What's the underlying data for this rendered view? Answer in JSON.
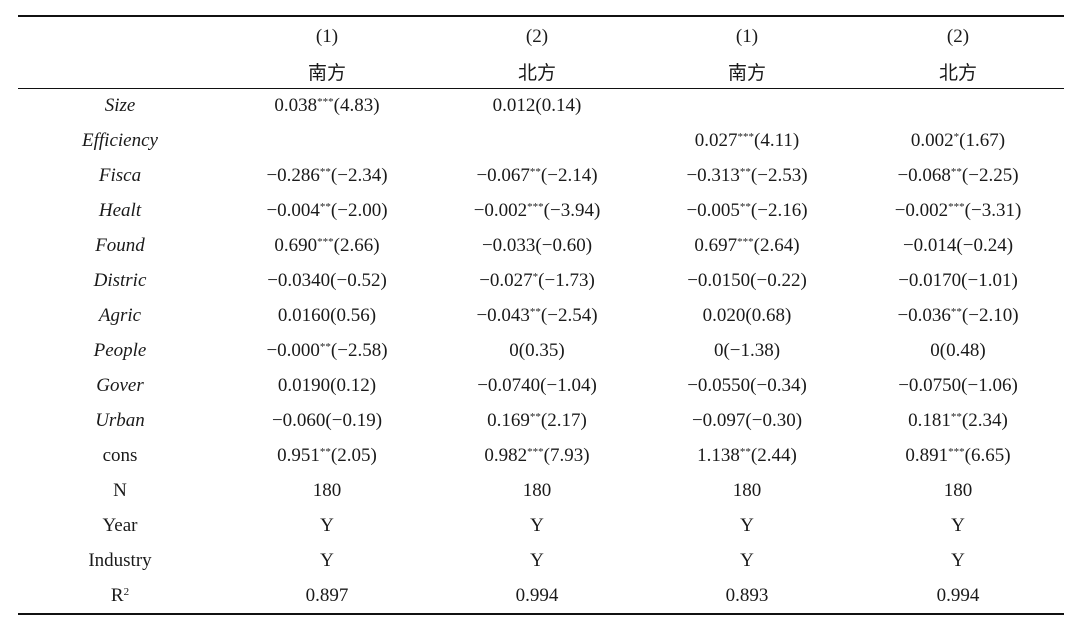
{
  "table": {
    "header_numbers": [
      "(1)",
      "(2)",
      "(1)",
      "(2)"
    ],
    "header_groups": [
      "南方",
      "北方",
      "南方",
      "北方"
    ],
    "rows": [
      {
        "label": "Size",
        "italic": true,
        "cells": [
          {
            "coef": "0.038",
            "stars": "***",
            "t": "(4.83)"
          },
          {
            "coef": "0.012",
            "stars": "",
            "t": "(0.14)"
          },
          {
            "coef": "",
            "stars": "",
            "t": ""
          },
          {
            "coef": "",
            "stars": "",
            "t": ""
          }
        ]
      },
      {
        "label": "Efficiency",
        "italic": true,
        "cells": [
          {
            "coef": "",
            "stars": "",
            "t": ""
          },
          {
            "coef": "",
            "stars": "",
            "t": ""
          },
          {
            "coef": "0.027",
            "stars": "***",
            "t": "(4.11)"
          },
          {
            "coef": "0.002",
            "stars": "*",
            "t": "(1.67)"
          }
        ]
      },
      {
        "label": "Fisca",
        "italic": true,
        "cells": [
          {
            "coef": "−0.286",
            "stars": "**",
            "t": "(−2.34)"
          },
          {
            "coef": "−0.067",
            "stars": "**",
            "t": "(−2.14)"
          },
          {
            "coef": "−0.313",
            "stars": "**",
            "t": "(−2.53)"
          },
          {
            "coef": "−0.068",
            "stars": "**",
            "t": "(−2.25)"
          }
        ]
      },
      {
        "label": "Healt",
        "italic": true,
        "cells": [
          {
            "coef": "−0.004",
            "stars": "**",
            "t": "(−2.00)"
          },
          {
            "coef": "−0.002",
            "stars": "***",
            "t": "(−3.94)"
          },
          {
            "coef": "−0.005",
            "stars": "**",
            "t": "(−2.16)"
          },
          {
            "coef": "−0.002",
            "stars": "***",
            "t": "(−3.31)"
          }
        ]
      },
      {
        "label": "Found",
        "italic": true,
        "cells": [
          {
            "coef": "0.690",
            "stars": "***",
            "t": "(2.66)"
          },
          {
            "coef": "−0.033",
            "stars": "",
            "t": "(−0.60)"
          },
          {
            "coef": "0.697",
            "stars": "***",
            "t": "(2.64)"
          },
          {
            "coef": "−0.014",
            "stars": "",
            "t": "(−0.24)"
          }
        ]
      },
      {
        "label": "Distric",
        "italic": true,
        "cells": [
          {
            "coef": "−0.0340",
            "stars": "",
            "t": "(−0.52)"
          },
          {
            "coef": "−0.027",
            "stars": "*",
            "t": "(−1.73)"
          },
          {
            "coef": "−0.0150",
            "stars": "",
            "t": "(−0.22)"
          },
          {
            "coef": "−0.0170",
            "stars": "",
            "t": "(−1.01)"
          }
        ]
      },
      {
        "label": "Agric",
        "italic": true,
        "cells": [
          {
            "coef": "0.0160",
            "stars": "",
            "t": "(0.56)"
          },
          {
            "coef": "−0.043",
            "stars": "**",
            "t": "(−2.54)"
          },
          {
            "coef": "0.020",
            "stars": "",
            "t": "(0.68)"
          },
          {
            "coef": "−0.036",
            "stars": "**",
            "t": "(−2.10)"
          }
        ]
      },
      {
        "label": "People",
        "italic": true,
        "cells": [
          {
            "coef": "−0.000",
            "stars": "**",
            "t": "(−2.58)"
          },
          {
            "coef": "0",
            "stars": "",
            "t": "(0.35)"
          },
          {
            "coef": "0",
            "stars": "",
            "t": "(−1.38)"
          },
          {
            "coef": "0",
            "stars": "",
            "t": "(0.48)"
          }
        ]
      },
      {
        "label": "Gover",
        "italic": true,
        "cells": [
          {
            "coef": "0.0190",
            "stars": "",
            "t": "(0.12)"
          },
          {
            "coef": "−0.0740",
            "stars": "",
            "t": "(−1.04)"
          },
          {
            "coef": "−0.0550",
            "stars": "",
            "t": "(−0.34)"
          },
          {
            "coef": "−0.0750",
            "stars": "",
            "t": "(−1.06)"
          }
        ]
      },
      {
        "label": "Urban",
        "italic": true,
        "cells": [
          {
            "coef": "−0.060",
            "stars": "",
            "t": "(−0.19)"
          },
          {
            "coef": "0.169",
            "stars": "**",
            "t": "(2.17)"
          },
          {
            "coef": "−0.097",
            "stars": "",
            "t": "(−0.30)"
          },
          {
            "coef": "0.181",
            "stars": "**",
            "t": "(2.34)"
          }
        ]
      },
      {
        "label": "cons",
        "italic": false,
        "cells": [
          {
            "coef": "0.951",
            "stars": "**",
            "t": "(2.05)"
          },
          {
            "coef": "0.982",
            "stars": "***",
            "t": "(7.93)"
          },
          {
            "coef": "1.138",
            "stars": "**",
            "t": "(2.44)"
          },
          {
            "coef": "0.891",
            "stars": "***",
            "t": "(6.65)"
          }
        ]
      },
      {
        "label": "N",
        "italic": false,
        "cells": [
          {
            "coef": "180",
            "stars": "",
            "t": ""
          },
          {
            "coef": "180",
            "stars": "",
            "t": ""
          },
          {
            "coef": "180",
            "stars": "",
            "t": ""
          },
          {
            "coef": "180",
            "stars": "",
            "t": ""
          }
        ]
      },
      {
        "label": "Year",
        "italic": false,
        "cells": [
          {
            "coef": "Y",
            "stars": "",
            "t": ""
          },
          {
            "coef": "Y",
            "stars": "",
            "t": ""
          },
          {
            "coef": "Y",
            "stars": "",
            "t": ""
          },
          {
            "coef": "Y",
            "stars": "",
            "t": ""
          }
        ]
      },
      {
        "label": "Industry",
        "italic": false,
        "cells": [
          {
            "coef": "Y",
            "stars": "",
            "t": ""
          },
          {
            "coef": "Y",
            "stars": "",
            "t": ""
          },
          {
            "coef": "Y",
            "stars": "",
            "t": ""
          },
          {
            "coef": "Y",
            "stars": "",
            "t": ""
          }
        ]
      },
      {
        "label": "R",
        "label_sup": "2",
        "italic": false,
        "cells": [
          {
            "coef": "0.897",
            "stars": "",
            "t": ""
          },
          {
            "coef": "0.994",
            "stars": "",
            "t": ""
          },
          {
            "coef": "0.893",
            "stars": "",
            "t": ""
          },
          {
            "coef": "0.994",
            "stars": "",
            "t": ""
          }
        ]
      }
    ]
  }
}
